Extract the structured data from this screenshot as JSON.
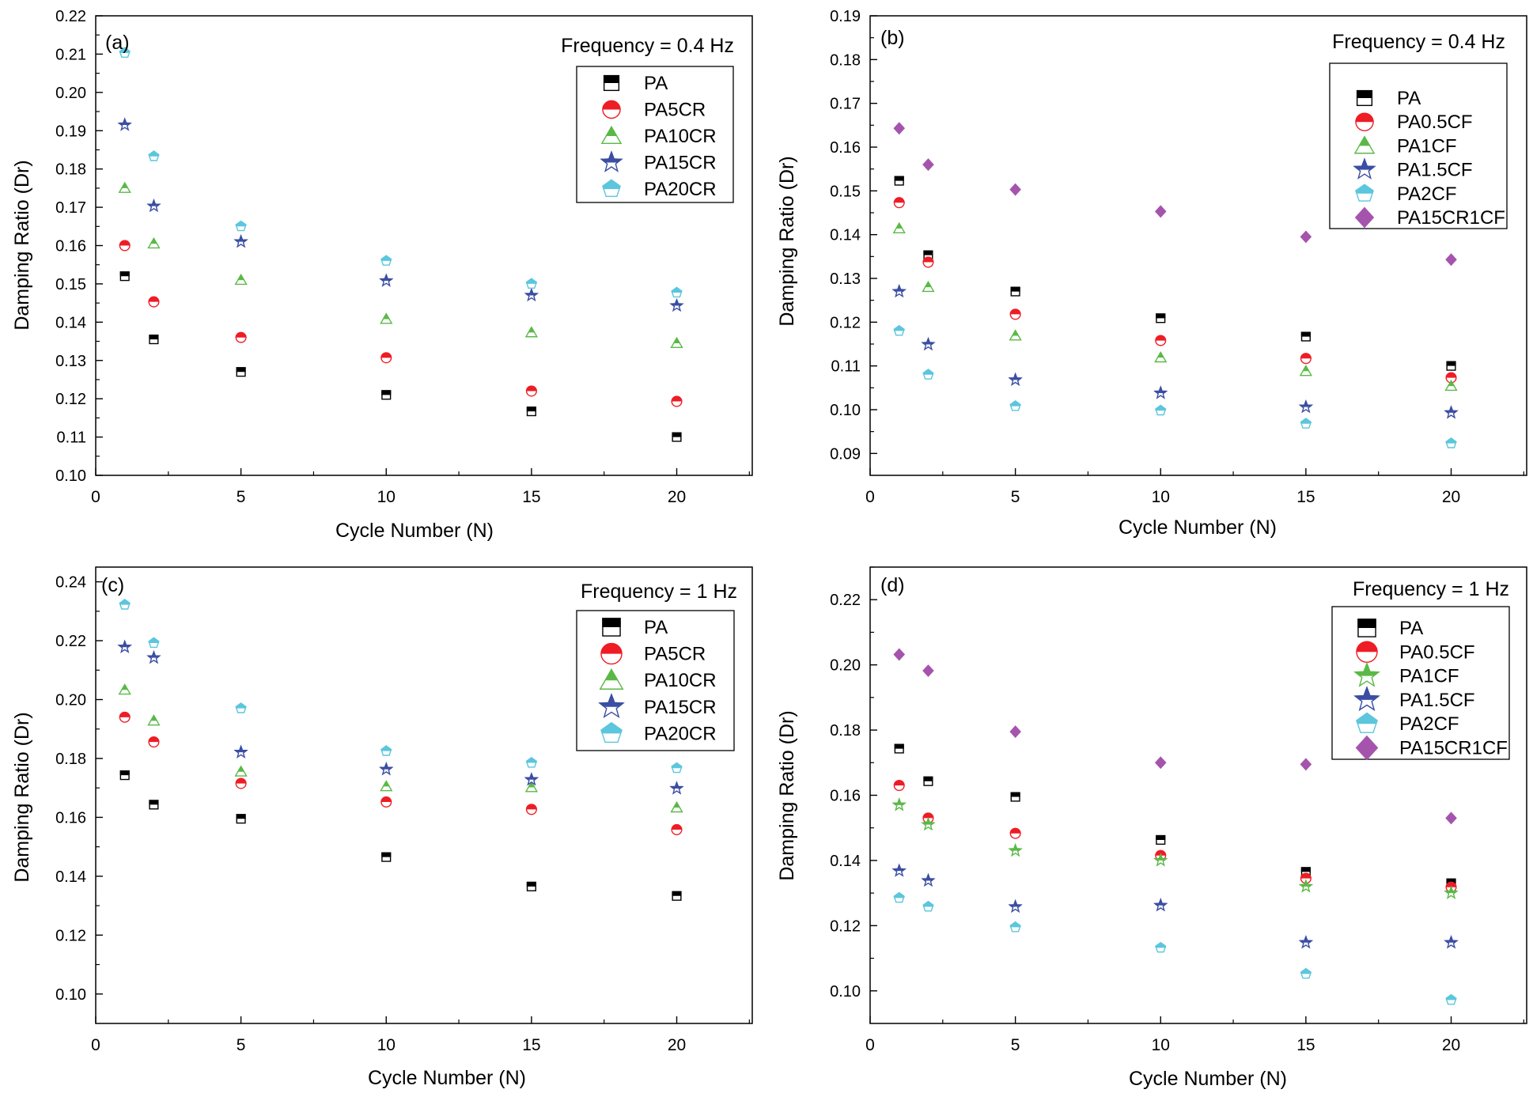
{
  "panels": [
    {
      "panel_label": "(a)",
      "frequency_label": "Frequency = 0.4 Hz",
      "legend_variant": "small",
      "chart_data": {
        "type": "scatter",
        "xlabel": "Cycle Number (N)",
        "ylabel": "Damping Ratio (Dr)",
        "xlim": [
          0,
          22.6
        ],
        "ylim": [
          0.1,
          0.22
        ],
        "xticks": [
          0,
          5,
          10,
          15,
          20
        ],
        "yticks": [
          0.1,
          0.11,
          0.12,
          0.13,
          0.14,
          0.15,
          0.16,
          0.17,
          0.18,
          0.19,
          0.2,
          0.21,
          0.22
        ],
        "ytick_decimals": 2,
        "x": [
          1,
          2,
          5,
          10,
          15,
          20
        ],
        "series": [
          {
            "name": "PA",
            "marker": "square",
            "color": "#000000",
            "values": [
              0.152,
              0.1355,
              0.127,
              0.121,
              0.1167,
              0.11
            ]
          },
          {
            "name": "PA5CR",
            "marker": "circle",
            "color": "#ee1c25",
            "values": [
              0.16,
              0.1453,
              0.136,
              0.1307,
              0.122,
              0.1193
            ]
          },
          {
            "name": "PA10CR",
            "marker": "triangle",
            "color": "#5ab946",
            "values": [
              0.175,
              0.1605,
              0.151,
              0.1408,
              0.1373,
              0.1345
            ]
          },
          {
            "name": "PA15CR",
            "marker": "star",
            "color": "#3b4ea3",
            "values": [
              0.1915,
              0.1703,
              0.161,
              0.1508,
              0.147,
              0.1443
            ]
          },
          {
            "name": "PA20CR",
            "marker": "pentagon",
            "color": "#5bc6dd",
            "values": [
              0.2103,
              0.1833,
              0.165,
              0.156,
              0.15,
              0.1477
            ]
          }
        ]
      }
    },
    {
      "panel_label": "(b)",
      "frequency_label": "Frequency = 0.4 Hz",
      "legend_variant": "large",
      "chart_data": {
        "type": "scatter",
        "xlabel": "Cycle Number (N)",
        "ylabel": "Damping Ratio (Dr)",
        "xlim": [
          0,
          22.6
        ],
        "ylim": [
          0.085,
          0.19
        ],
        "xticks": [
          0,
          5,
          10,
          15,
          20
        ],
        "yticks": [
          0.09,
          0.1,
          0.11,
          0.12,
          0.13,
          0.14,
          0.15,
          0.16,
          0.17,
          0.18,
          0.19
        ],
        "ytick_decimals": 2,
        "x": [
          1,
          2,
          5,
          10,
          15,
          20
        ],
        "series": [
          {
            "name": "PA",
            "marker": "square",
            "color": "#000000",
            "values": [
              0.1523,
              0.1353,
              0.127,
              0.1209,
              0.1167,
              0.11
            ]
          },
          {
            "name": "PA0.5CF",
            "marker": "circle",
            "color": "#ee1c25",
            "values": [
              0.1473,
              0.1337,
              0.1218,
              0.1158,
              0.1117,
              0.1073
            ]
          },
          {
            "name": "PA1CF",
            "marker": "triangle",
            "color": "#5ab946",
            "values": [
              0.1414,
              0.128,
              0.1169,
              0.1119,
              0.1088,
              0.1054
            ]
          },
          {
            "name": "PA1.5CF",
            "marker": "star",
            "color": "#3b4ea3",
            "values": [
              0.127,
              0.1149,
              0.1068,
              0.1038,
              0.1006,
              0.0993
            ]
          },
          {
            "name": "PA2CF",
            "marker": "pentagon",
            "color": "#5bc6dd",
            "values": [
              0.118,
              0.108,
              0.1008,
              0.0998,
              0.0968,
              0.0923
            ]
          },
          {
            "name": "PA15CR1CF",
            "marker": "diamond",
            "color": "#a554ad",
            "values": [
              0.1643,
              0.156,
              0.1503,
              0.1453,
              0.1395,
              0.1343
            ]
          }
        ]
      }
    },
    {
      "panel_label": "(c)",
      "frequency_label": "Frequency = 1 Hz",
      "legend_variant": "small",
      "chart_data": {
        "type": "scatter",
        "xlabel": "Cycle Number (N)",
        "ylabel": "Damping Ratio (Dr)",
        "xlim": [
          0,
          22.6
        ],
        "ylim": [
          0.09,
          0.245
        ],
        "xticks": [
          0,
          5,
          10,
          15,
          20
        ],
        "yticks": [
          0.1,
          0.12,
          0.14,
          0.16,
          0.18,
          0.2,
          0.22,
          0.24
        ],
        "ytick_decimals": 2,
        "x": [
          1,
          2,
          5,
          10,
          15,
          20
        ],
        "series": [
          {
            "name": "PA",
            "marker": "square",
            "color": "#000000",
            "values": [
              0.1743,
              0.1643,
              0.1595,
              0.1465,
              0.1365,
              0.1333
            ]
          },
          {
            "name": "PA5CR",
            "marker": "circle",
            "color": "#ee1c25",
            "values": [
              0.194,
              0.1856,
              0.1715,
              0.1652,
              0.1627,
              0.1558
            ]
          },
          {
            "name": "PA10CR",
            "marker": "triangle",
            "color": "#5ab946",
            "values": [
              0.2033,
              0.1928,
              0.1755,
              0.1705,
              0.1702,
              0.1633
            ]
          },
          {
            "name": "PA15CR",
            "marker": "star",
            "color": "#3b4ea3",
            "values": [
              0.2178,
              0.2142,
              0.1821,
              0.1763,
              0.1728,
              0.1698
            ]
          },
          {
            "name": "PA20CR",
            "marker": "pentagon",
            "color": "#5bc6dd",
            "values": [
              0.2322,
              0.2192,
              0.197,
              0.1825,
              0.1785,
              0.1767
            ]
          }
        ]
      }
    },
    {
      "panel_label": "(d)",
      "frequency_label": "Frequency = 1 Hz",
      "legend_variant": "large",
      "chart_data": {
        "type": "scatter",
        "xlabel": "Cycle Number (N)",
        "ylabel": "Damping Ratio (Dr)",
        "xlim": [
          0,
          22.6
        ],
        "ylim": [
          0.09,
          0.23
        ],
        "xticks": [
          0,
          5,
          10,
          15,
          20
        ],
        "yticks": [
          0.1,
          0.12,
          0.14,
          0.16,
          0.18,
          0.2,
          0.22
        ],
        "ytick_decimals": 2,
        "x": [
          1,
          2,
          5,
          10,
          15,
          20
        ],
        "series": [
          {
            "name": "PA",
            "marker": "square",
            "color": "#000000",
            "values": [
              0.1743,
              0.1643,
              0.1595,
              0.1463,
              0.1365,
              0.133
            ]
          },
          {
            "name": "PA0.5CF",
            "marker": "circle",
            "color": "#ee1c25",
            "values": [
              0.163,
              0.153,
              0.1483,
              0.1415,
              0.1345,
              0.1318
            ]
          },
          {
            "name": "PA1CF",
            "marker": "star",
            "color": "#5ab946",
            "values": [
              0.157,
              0.151,
              0.143,
              0.14,
              0.132,
              0.13
            ]
          },
          {
            "name": "PA1.5CF",
            "marker": "star",
            "color": "#3b4ea3",
            "values": [
              0.1368,
              0.1338,
              0.1258,
              0.1262,
              0.1148,
              0.1148
            ]
          },
          {
            "name": "PA2CF",
            "marker": "pentagon",
            "color": "#5bc6dd",
            "values": [
              0.1285,
              0.1258,
              0.1195,
              0.1132,
              0.1052,
              0.0972
            ]
          },
          {
            "name": "PA15CR1CF",
            "marker": "diamond",
            "color": "#a554ad",
            "values": [
              0.2032,
              0.1982,
              0.1795,
              0.17,
              0.1695,
              0.153
            ]
          }
        ]
      }
    }
  ]
}
